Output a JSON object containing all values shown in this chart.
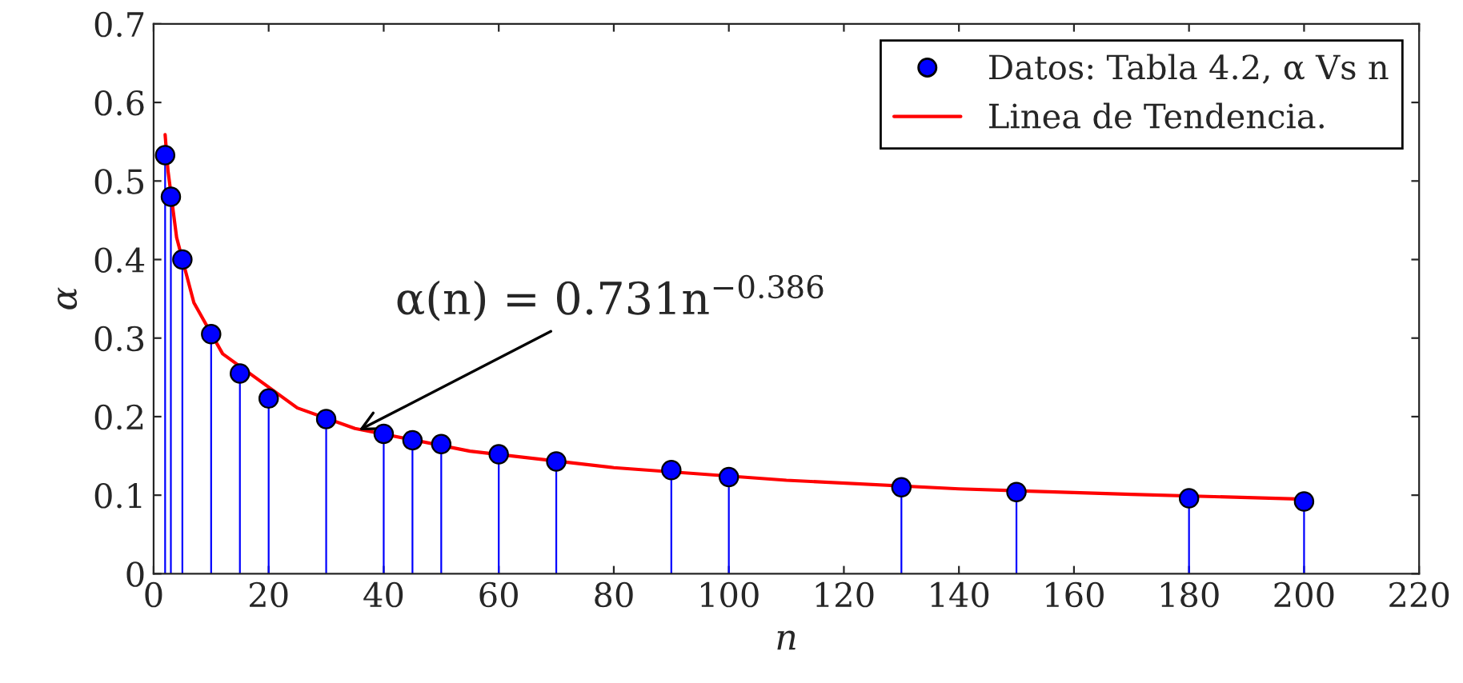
{
  "chart_data": {
    "type": "lollipop",
    "xlabel": "n",
    "ylabel": "α",
    "xlim": [
      0,
      220
    ],
    "xticks": [
      0,
      20,
      40,
      60,
      80,
      100,
      120,
      140,
      160,
      180,
      200,
      220
    ],
    "ylim": [
      0,
      0.7
    ],
    "yticks": [
      0,
      0.1,
      0.2,
      0.3,
      0.4,
      0.5,
      0.6,
      0.7
    ],
    "grid": false,
    "legend": "top right",
    "series": [
      {
        "name": "Datos: Tabla 4.2, α Vs n",
        "marker": "circle",
        "color": "#0000ff",
        "x": [
          2,
          3,
          5,
          10,
          15,
          20,
          30,
          40,
          45,
          50,
          60,
          70,
          90,
          100,
          130,
          150,
          180,
          200
        ],
        "values": [
          0.533,
          0.48,
          0.4,
          0.305,
          0.255,
          0.223,
          0.197,
          0.178,
          0.17,
          0.165,
          0.152,
          0.143,
          0.132,
          0.123,
          0.11,
          0.104,
          0.096,
          0.092
        ]
      },
      {
        "name": "Linea de Tendencia.",
        "type": "line",
        "color": "#ff0000",
        "line_style": "solid",
        "x": [
          2,
          2.5,
          4,
          7,
          12,
          25,
          35,
          55,
          80,
          110,
          140,
          170,
          200
        ],
        "values": [
          0.559,
          0.513,
          0.428,
          0.345,
          0.28,
          0.211,
          0.185,
          0.156,
          0.135,
          0.119,
          0.108,
          0.101,
          0.095
        ]
      }
    ],
    "annotations": [
      {
        "text": "α(n) = 0.731n$^{−0.386}$",
        "x": 35,
        "y": 0.18
      }
    ]
  }
}
